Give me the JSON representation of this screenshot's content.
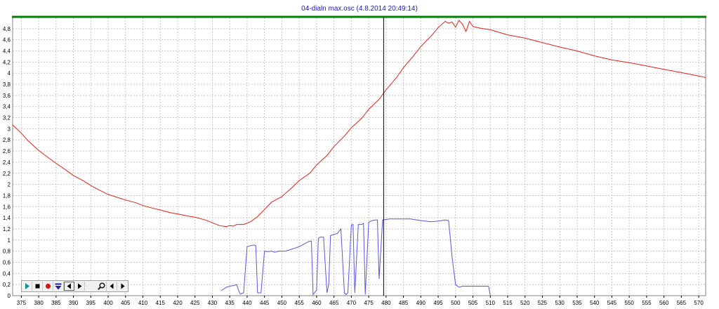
{
  "chart_data": {
    "type": "line",
    "title": "04-dialn max.osc  (4.8.2014 20:49:14)",
    "xlim": [
      372.5,
      572
    ],
    "ylim": [
      0,
      5.0
    ],
    "x_ticks": [
      375,
      380,
      385,
      390,
      395,
      400,
      405,
      410,
      415,
      420,
      425,
      430,
      435,
      440,
      445,
      450,
      455,
      460,
      465,
      470,
      475,
      480,
      485,
      490,
      495,
      500,
      505,
      510,
      515,
      520,
      525,
      530,
      535,
      540,
      545,
      550,
      555,
      560,
      565,
      570
    ],
    "y_ticks": [
      0,
      0.2,
      0.4,
      0.6,
      0.8,
      1,
      1.2,
      1.4,
      1.6,
      1.8,
      2,
      2.2,
      2.4,
      2.6,
      2.8,
      3,
      3.2,
      3.4,
      3.6,
      3.8,
      4,
      4.2,
      4.4,
      4.6,
      4.8
    ],
    "y_tick_labels": [
      "0",
      "0,2",
      "0,4",
      "0,6",
      "0,8",
      "1",
      "1,2",
      "1,4",
      "1,6",
      "1,8",
      "2",
      "2,2",
      "2,4",
      "2,6",
      "2,8",
      "3",
      "3,2",
      "3,4",
      "3,6",
      "3,8",
      "4",
      "4,2",
      "4,4",
      "4,6",
      "4,8"
    ],
    "grid": true,
    "cursor_x": 479.3,
    "series": [
      {
        "color": "#e8201a",
        "x": [
          372.5,
          375,
          377,
          380,
          383,
          385,
          388,
          390,
          393,
          395,
          398,
          400,
          403,
          405,
          408,
          410,
          413,
          415,
          418,
          420,
          423,
          425,
          428,
          430,
          432,
          434,
          435,
          436,
          437,
          439,
          441,
          443,
          445,
          447,
          450,
          453,
          455,
          458,
          460,
          463,
          465,
          468,
          470,
          473,
          475,
          478,
          480,
          483,
          485,
          488,
          490,
          493,
          495,
          497,
          498,
          499,
          500,
          501,
          502,
          503,
          504,
          505,
          507,
          510,
          515,
          520,
          525,
          530,
          535,
          540,
          545,
          550,
          555,
          560,
          565,
          570,
          572
        ],
        "y": [
          3.07,
          2.92,
          2.78,
          2.61,
          2.47,
          2.38,
          2.25,
          2.16,
          2.06,
          1.98,
          1.88,
          1.82,
          1.76,
          1.72,
          1.67,
          1.62,
          1.57,
          1.54,
          1.49,
          1.47,
          1.43,
          1.41,
          1.36,
          1.31,
          1.26,
          1.24,
          1.26,
          1.25,
          1.28,
          1.28,
          1.33,
          1.42,
          1.55,
          1.68,
          1.78,
          1.95,
          2.07,
          2.2,
          2.35,
          2.52,
          2.68,
          2.87,
          3.02,
          3.19,
          3.35,
          3.53,
          3.7,
          3.92,
          4.1,
          4.32,
          4.48,
          4.67,
          4.82,
          4.93,
          4.9,
          4.92,
          4.83,
          4.95,
          4.88,
          4.75,
          4.93,
          4.84,
          4.81,
          4.78,
          4.69,
          4.63,
          4.55,
          4.47,
          4.4,
          4.31,
          4.24,
          4.19,
          4.13,
          4.07,
          4.01,
          3.95,
          3.92
        ]
      },
      {
        "color": "#5858e0",
        "x": [
          432.5,
          434,
          435,
          436,
          437,
          437.5,
          438,
          439,
          440,
          441,
          442,
          442.5,
          443,
          444,
          445,
          446,
          447,
          448,
          449,
          450,
          451,
          453,
          455,
          457,
          458,
          458.5,
          459,
          460,
          460.5,
          461,
          462,
          463,
          463.5,
          464,
          465,
          466,
          467,
          468,
          468.5,
          469,
          470,
          470.5,
          471,
          472,
          473,
          473.5,
          474,
          475,
          476,
          477,
          477.5,
          478,
          479,
          480,
          481,
          483,
          485,
          487,
          490,
          493,
          495,
          497,
          498,
          499,
          500,
          501,
          502,
          505,
          508,
          509.5,
          510
        ],
        "y": [
          0.09,
          0.15,
          0.17,
          0.18,
          0.2,
          0.1,
          0.03,
          0.05,
          0.88,
          0.9,
          0.91,
          0.9,
          0.05,
          0.05,
          0.8,
          0.79,
          0.8,
          0.78,
          0.8,
          0.8,
          0.8,
          0.84,
          0.88,
          0.95,
          0.98,
          0.98,
          0.02,
          0.1,
          1.03,
          1.05,
          1.05,
          0.05,
          0.2,
          1.08,
          1.1,
          1.12,
          1.2,
          0.05,
          0.02,
          0.05,
          1.27,
          1.28,
          0.05,
          1.28,
          1.28,
          1.3,
          0.02,
          1.32,
          1.35,
          1.36,
          1.36,
          0.3,
          1.36,
          1.37,
          1.38,
          1.38,
          1.38,
          1.38,
          1.35,
          1.33,
          1.34,
          1.36,
          1.35,
          0.7,
          0.2,
          0.15,
          0.17,
          0.17,
          0.17,
          0.17,
          0.0
        ]
      }
    ]
  },
  "toolbar": {
    "icons": [
      "play-icon",
      "stop-icon",
      "record-icon",
      "marker-down-icon",
      "step-back-icon",
      "step-forward-icon",
      "zoom-icon",
      "scroll-left-icon",
      "scroll-right-icon"
    ]
  },
  "colors": {
    "top_border": "#008000",
    "grid": "#c8c8c8",
    "cursor": "#000000"
  }
}
